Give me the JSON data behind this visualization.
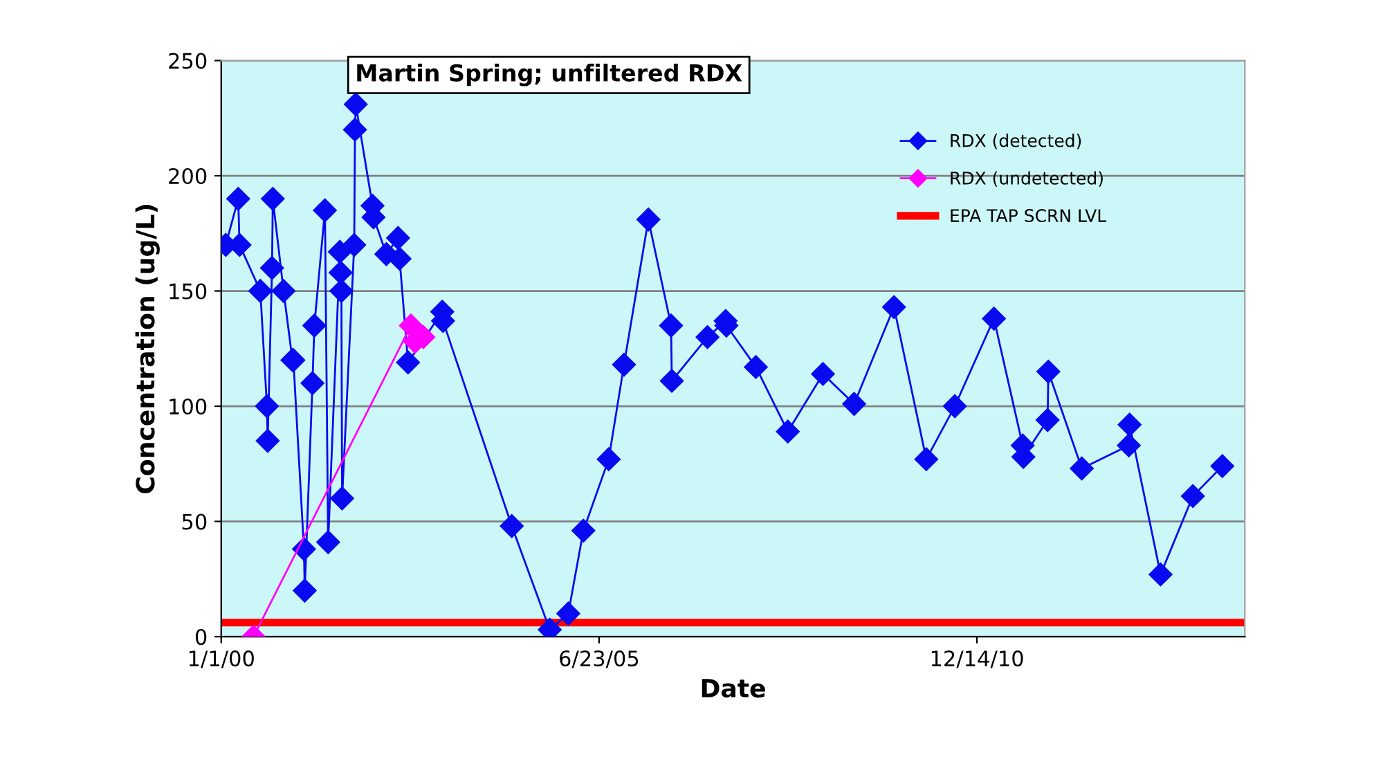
{
  "chart_data": {
    "type": "line",
    "title": "Martin Spring; unfiltered RDX",
    "xlabel": "Date",
    "ylabel": "Concentration (ug/L)",
    "series": [
      {
        "name": "RDX (detected)",
        "color": "#0a0af0",
        "x": [
          "2000-01-25",
          "2000-03-31",
          "2000-04-07",
          "2000-07-26",
          "2000-08-30",
          "2000-09-03",
          "2000-09-26",
          "2000-09-30",
          "2000-11-26",
          "2001-01-12",
          "2001-01-17",
          "2001-03-14",
          "2001-03-18",
          "2001-04-28",
          "2001-05-08",
          "2001-07-03",
          "2001-07-20",
          "2001-09-20",
          "2001-09-24",
          "2001-09-28",
          "2001-10-02",
          "2001-12-05",
          "2001-12-09",
          "2001-12-13",
          "2002-03-12",
          "2002-03-17",
          "2002-05-24",
          "2002-07-25",
          "2002-08-02",
          "2002-09-16",
          "2003-03-16",
          "2003-03-20",
          "2004-03-18",
          "2004-10-05",
          "2005-01-11",
          "2005-04-01",
          "2005-08-13",
          "2005-11-02",
          "2006-03-11",
          "2006-07-09",
          "2006-07-13",
          "2007-01-18",
          "2007-04-24",
          "2007-04-28",
          "2007-10-01",
          "2008-03-18",
          "2008-09-20",
          "2009-03-04",
          "2009-10-01",
          "2010-03-21",
          "2010-08-19",
          "2011-03-14",
          "2011-08-13",
          "2011-08-17",
          "2011-12-23",
          "2011-12-27",
          "2012-06-21",
          "2013-02-25",
          "2013-03-01",
          "2013-08-12",
          "2014-01-30",
          "2014-07-05"
        ],
        "values": [
          170,
          190,
          170,
          150,
          100,
          85,
          160,
          190,
          150,
          120,
          120,
          38,
          20,
          110,
          135,
          185,
          41,
          167,
          158,
          150,
          60,
          170,
          220,
          231,
          187,
          182,
          166,
          173,
          164,
          119,
          141,
          137,
          48,
          3,
          10,
          46,
          77,
          118,
          181,
          135,
          111,
          130,
          137,
          135,
          117,
          89,
          114,
          101,
          143,
          77,
          100,
          138,
          83,
          78,
          94,
          115,
          73,
          83,
          92,
          27,
          61,
          74
        ]
      },
      {
        "name": "RDX (undetected)",
        "color": "#ff00ff",
        "x": [
          "2000-06-20",
          "2002-10-01",
          "2002-10-23",
          "2002-12-06"
        ],
        "values": [
          0,
          135,
          128,
          130
        ]
      }
    ],
    "ref_lines": [
      {
        "axis": "y",
        "value": 6.1,
        "label": "EPA TAP SCRN LVL",
        "color": "#ff0000"
      }
    ],
    "xlim": [
      "2000-01-01",
      "2014-11-01"
    ],
    "xticks": [
      {
        "value": "2000-01-01",
        "label": "1/1/00"
      },
      {
        "value": "2005-06-23",
        "label": "6/23/05"
      },
      {
        "value": "2010-12-14",
        "label": "12/14/10"
      }
    ],
    "ylim": [
      0,
      250
    ],
    "yticks": [
      0,
      50,
      100,
      150,
      200,
      250
    ],
    "grid": "y",
    "legend": "top right",
    "marker": "diamond",
    "line_style": "solid"
  }
}
